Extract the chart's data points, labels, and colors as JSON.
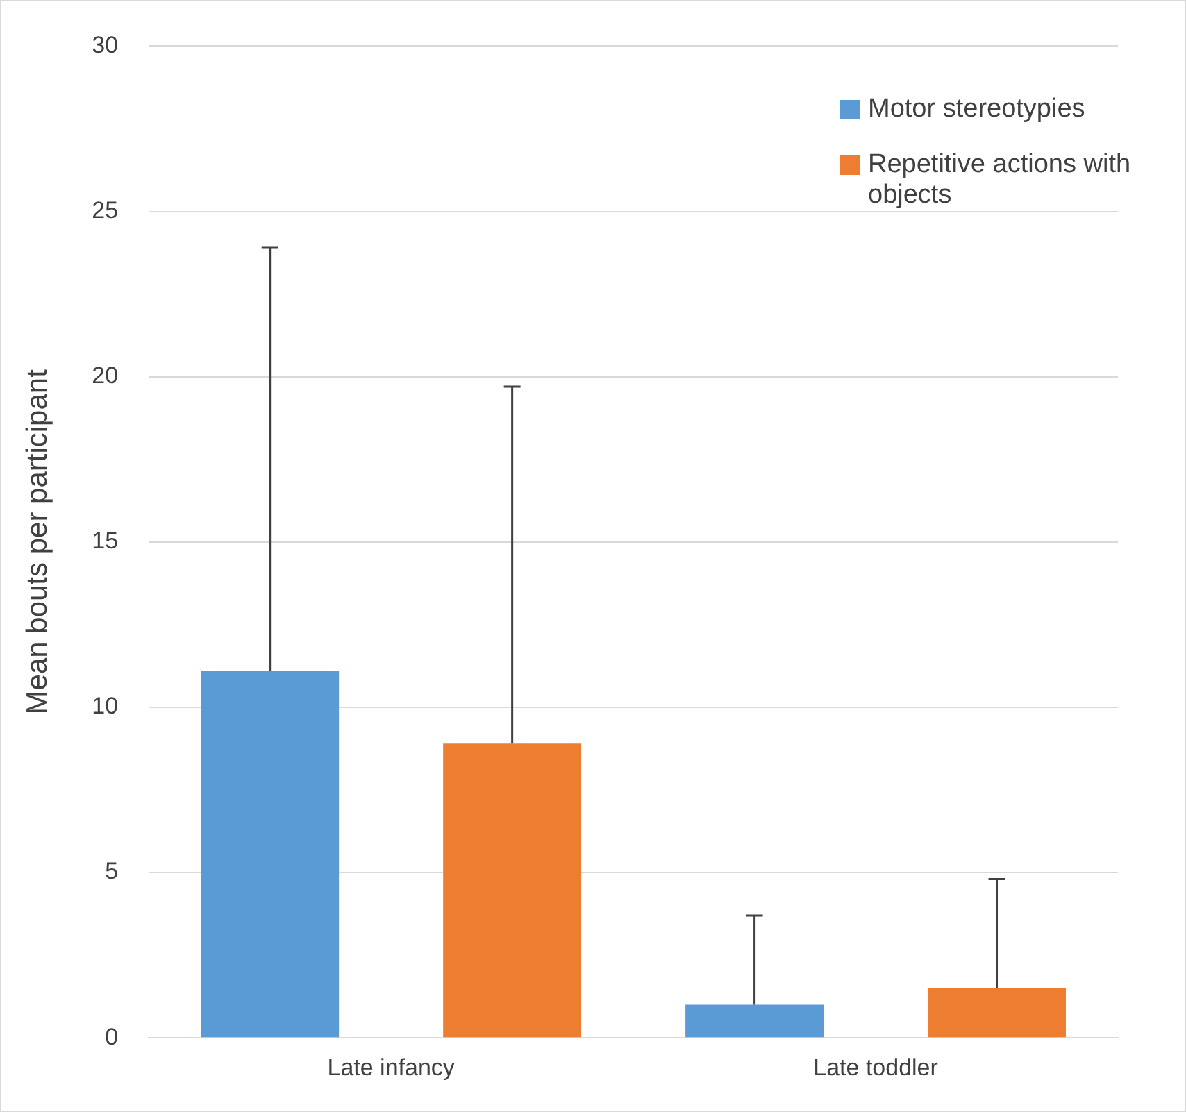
{
  "chart_data": {
    "type": "bar",
    "ylabel": "Mean bouts per participant",
    "categories": [
      "Late infancy",
      "Late toddler"
    ],
    "series": [
      {
        "name": "Motor stereotypies",
        "color": "#5b9bd5",
        "values": [
          11.1,
          1.0
        ],
        "errors": [
          [
            11.1,
            23.9
          ],
          [
            1.0,
            3.7
          ]
        ]
      },
      {
        "name": "Repetitive actions with objects",
        "color": "#ed7d31",
        "values": [
          8.9,
          1.5
        ],
        "errors": [
          [
            8.9,
            19.7
          ],
          [
            1.5,
            4.8
          ]
        ]
      }
    ],
    "ylim": [
      0,
      30
    ],
    "yticks": [
      0,
      5,
      10,
      15,
      20,
      25,
      30
    ],
    "grid": "y",
    "legend": "top right"
  }
}
